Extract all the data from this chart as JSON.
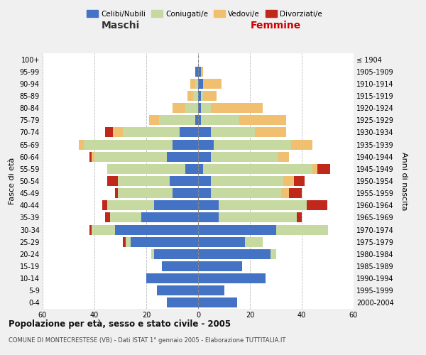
{
  "age_groups": [
    "0-4",
    "5-9",
    "10-14",
    "15-19",
    "20-24",
    "25-29",
    "30-34",
    "35-39",
    "40-44",
    "45-49",
    "50-54",
    "55-59",
    "60-64",
    "65-69",
    "70-74",
    "75-79",
    "80-84",
    "85-89",
    "90-94",
    "95-99",
    "100+"
  ],
  "birth_years": [
    "2000-2004",
    "1995-1999",
    "1990-1994",
    "1985-1989",
    "1980-1984",
    "1975-1979",
    "1970-1974",
    "1965-1969",
    "1960-1964",
    "1955-1959",
    "1950-1954",
    "1945-1949",
    "1940-1944",
    "1935-1939",
    "1930-1934",
    "1925-1929",
    "1920-1924",
    "1915-1919",
    "1910-1914",
    "1905-1909",
    "≤ 1904"
  ],
  "maschi": {
    "celibi": [
      12,
      16,
      20,
      14,
      17,
      26,
      32,
      22,
      17,
      10,
      11,
      5,
      12,
      10,
      7,
      1,
      0,
      0,
      0,
      1,
      0
    ],
    "coniugati": [
      0,
      0,
      0,
      0,
      1,
      2,
      9,
      12,
      18,
      21,
      20,
      30,
      28,
      34,
      22,
      14,
      5,
      2,
      1,
      0,
      0
    ],
    "vedovi": [
      0,
      0,
      0,
      0,
      0,
      0,
      0,
      0,
      0,
      0,
      0,
      0,
      1,
      2,
      4,
      4,
      5,
      2,
      2,
      0,
      0
    ],
    "divorziati": [
      0,
      0,
      0,
      0,
      0,
      1,
      1,
      2,
      2,
      1,
      4,
      0,
      1,
      0,
      3,
      0,
      0,
      0,
      0,
      0,
      0
    ]
  },
  "femmine": {
    "nubili": [
      15,
      10,
      26,
      17,
      28,
      18,
      30,
      8,
      8,
      5,
      5,
      2,
      5,
      6,
      5,
      1,
      1,
      1,
      2,
      1,
      0
    ],
    "coniugate": [
      0,
      0,
      0,
      0,
      2,
      7,
      20,
      30,
      34,
      27,
      28,
      42,
      26,
      30,
      17,
      15,
      4,
      1,
      0,
      0,
      0
    ],
    "vedove": [
      0,
      0,
      0,
      0,
      0,
      0,
      0,
      0,
      0,
      3,
      4,
      2,
      4,
      8,
      12,
      18,
      20,
      5,
      7,
      1,
      0
    ],
    "divorziate": [
      0,
      0,
      0,
      0,
      0,
      0,
      0,
      2,
      8,
      5,
      4,
      5,
      0,
      0,
      0,
      0,
      0,
      0,
      0,
      0,
      0
    ]
  },
  "colors": {
    "celibi": "#4472c4",
    "coniugati": "#c5d9a0",
    "vedovi": "#f0c070",
    "divorziati": "#c0281c"
  },
  "title": "Popolazione per età, sesso e stato civile - 2005",
  "subtitle": "COMUNE DI MONTECRESTESE (VB) - Dati ISTAT 1° gennaio 2005 - Elaborazione TUTTITALIA.IT",
  "xlabel_left": "Maschi",
  "xlabel_right": "Femmine",
  "ylabel_left": "Fasce di età",
  "ylabel_right": "Anni di nascita",
  "xlim": 60,
  "background_color": "#f0f0f0",
  "plot_background": "#ffffff",
  "legend_labels": [
    "Celibi/Nubili",
    "Coniugati/e",
    "Vedovi/e",
    "Divorziati/e"
  ]
}
